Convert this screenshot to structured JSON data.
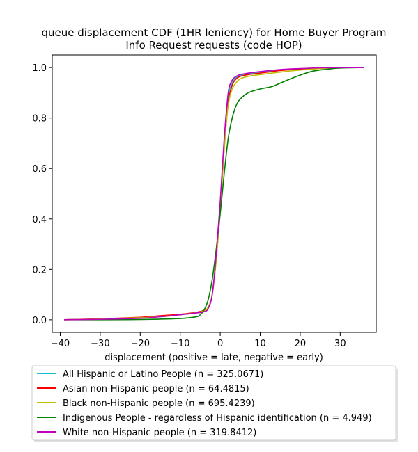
{
  "chart_data": {
    "type": "line",
    "title": [
      "queue displacement CDF (1HR leniency) for Home Buyer Program",
      "Info Request  requests (code HOP)"
    ],
    "xlabel": "displacement (positive = late, negative = early)",
    "ylabel": "",
    "xlim": [
      -42,
      39
    ],
    "ylim": [
      -0.05,
      1.05
    ],
    "xticks": [
      -40,
      -30,
      -20,
      -10,
      0,
      10,
      20,
      30
    ],
    "yticks": [
      0.0,
      0.2,
      0.4,
      0.6,
      0.8,
      1.0
    ],
    "xtick_labels": [
      "−40",
      "−30",
      "−20",
      "−10",
      "0",
      "10",
      "20",
      "30"
    ],
    "ytick_labels": [
      "0.0",
      "0.2",
      "0.4",
      "0.6",
      "0.8",
      "1.0"
    ],
    "grid": false,
    "legend_position": "below plot",
    "series": [
      {
        "name": "All Hispanic or Latino People (n = 325.0671)",
        "color": "#17becf",
        "x": [
          -39,
          -30,
          -20,
          -15,
          -10,
          -6,
          -4,
          -3,
          -2,
          -1,
          0,
          1,
          2,
          3,
          4,
          5,
          7,
          10,
          15,
          20,
          25,
          30,
          36
        ],
        "y": [
          0.0,
          0.003,
          0.008,
          0.012,
          0.02,
          0.028,
          0.035,
          0.05,
          0.1,
          0.25,
          0.45,
          0.7,
          0.88,
          0.94,
          0.96,
          0.968,
          0.975,
          0.98,
          0.99,
          0.995,
          0.998,
          1.0,
          1.0
        ]
      },
      {
        "name": "Asian non-Hispanic people (n = 64.4815)",
        "color": "#ff0000",
        "x": [
          -39,
          -30,
          -20,
          -15,
          -10,
          -6,
          -4,
          -3,
          -2,
          -1,
          0,
          1,
          2,
          3,
          4,
          5,
          7,
          10,
          15,
          20,
          25,
          30,
          36
        ],
        "y": [
          0.0,
          0.004,
          0.01,
          0.016,
          0.022,
          0.03,
          0.038,
          0.05,
          0.1,
          0.24,
          0.44,
          0.68,
          0.86,
          0.93,
          0.955,
          0.965,
          0.972,
          0.978,
          0.988,
          0.994,
          0.998,
          1.0,
          1.0
        ]
      },
      {
        "name": "Black non-Hispanic people (n = 695.4239)",
        "color": "#bfbf00",
        "x": [
          -39,
          -30,
          -20,
          -15,
          -10,
          -6,
          -4,
          -3,
          -2,
          -1,
          0,
          1,
          2,
          3,
          4,
          5,
          7,
          10,
          15,
          20,
          25,
          30,
          36
        ],
        "y": [
          0.0,
          0.003,
          0.008,
          0.012,
          0.02,
          0.028,
          0.036,
          0.05,
          0.1,
          0.24,
          0.44,
          0.68,
          0.85,
          0.915,
          0.94,
          0.955,
          0.965,
          0.972,
          0.982,
          0.99,
          0.996,
          1.0,
          1.0
        ]
      },
      {
        "name": "Indigenous People - regardless of Hispanic identification (n = 4.949)",
        "color": "#008000",
        "x": [
          -39,
          -30,
          -20,
          -10,
          -6,
          -5,
          -4,
          -3,
          -2,
          -1,
          0,
          1,
          2,
          3,
          4,
          5,
          7,
          10,
          13,
          16,
          20,
          23,
          26,
          30,
          36
        ],
        "y": [
          0.0,
          0.0,
          0.001,
          0.005,
          0.012,
          0.02,
          0.04,
          0.08,
          0.16,
          0.28,
          0.42,
          0.58,
          0.72,
          0.8,
          0.85,
          0.875,
          0.9,
          0.915,
          0.925,
          0.945,
          0.97,
          0.985,
          0.992,
          0.998,
          1.0
        ]
      },
      {
        "name": "White non-Hispanic people (n = 319.8412)",
        "color": "#bf00bf",
        "x": [
          -39,
          -30,
          -20,
          -15,
          -10,
          -6,
          -4,
          -3,
          -2,
          -1,
          0,
          1,
          2,
          3,
          4,
          5,
          7,
          10,
          15,
          20,
          25,
          30,
          36
        ],
        "y": [
          0.0,
          0.002,
          0.006,
          0.012,
          0.02,
          0.027,
          0.032,
          0.045,
          0.1,
          0.26,
          0.47,
          0.72,
          0.9,
          0.95,
          0.965,
          0.972,
          0.978,
          0.984,
          0.992,
          0.996,
          0.999,
          1.0,
          1.0
        ]
      }
    ]
  }
}
